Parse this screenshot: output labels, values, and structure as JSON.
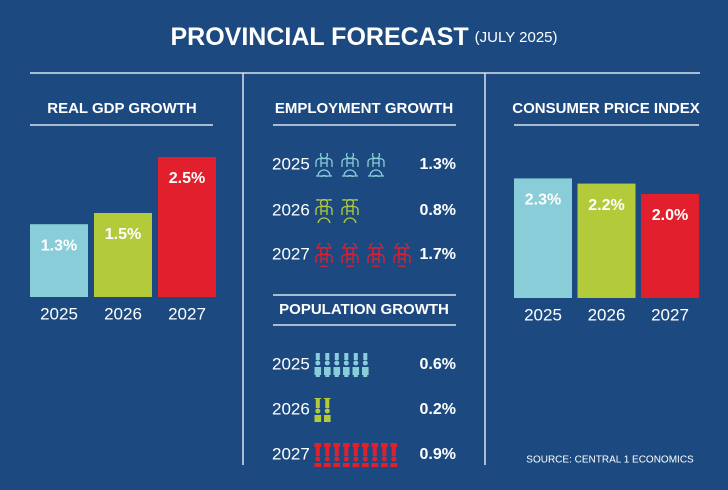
{
  "title": "PROVINCIAL FORECAST",
  "subtitle": "(JULY 2025)",
  "source": "SOURCE: CENTRAL 1 ECONOMICS",
  "chart_data": [
    {
      "type": "bar",
      "title": "REAL GDP GROWTH",
      "categories": [
        "2025",
        "2026",
        "2027"
      ],
      "values": [
        1.3,
        1.5,
        2.5
      ],
      "value_labels": [
        "1.3%",
        "1.5%",
        "2.5%"
      ],
      "colors": [
        "#88cdd8",
        "#b3cb3b",
        "#e21f2c"
      ]
    },
    {
      "type": "pictogram",
      "icon": "worker",
      "title": "EMPLOYMENT GROWTH",
      "categories": [
        "2025",
        "2026",
        "2027"
      ],
      "values": [
        1.3,
        0.8,
        1.7
      ],
      "value_labels": [
        "1.3%",
        "0.8%",
        "1.7%"
      ],
      "colors": [
        "#88cdd8",
        "#b3cb3b",
        "#e21f2c"
      ]
    },
    {
      "type": "pictogram",
      "icon": "person",
      "title": "POPULATION GROWTH",
      "categories": [
        "2025",
        "2026",
        "2027"
      ],
      "values": [
        0.6,
        0.2,
        0.9
      ],
      "value_labels": [
        "0.6%",
        "0.2%",
        "0.9%"
      ],
      "colors": [
        "#88cdd8",
        "#b3cb3b",
        "#e21f2c"
      ]
    },
    {
      "type": "bar",
      "title": "CONSUMER PRICE INDEX",
      "categories": [
        "2025",
        "2026",
        "2027"
      ],
      "values": [
        2.3,
        2.2,
        2.0
      ],
      "value_labels": [
        "2.3%",
        "2.2%",
        "2.0%"
      ],
      "colors": [
        "#88cdd8",
        "#b3cb3b",
        "#e21f2c"
      ]
    }
  ]
}
